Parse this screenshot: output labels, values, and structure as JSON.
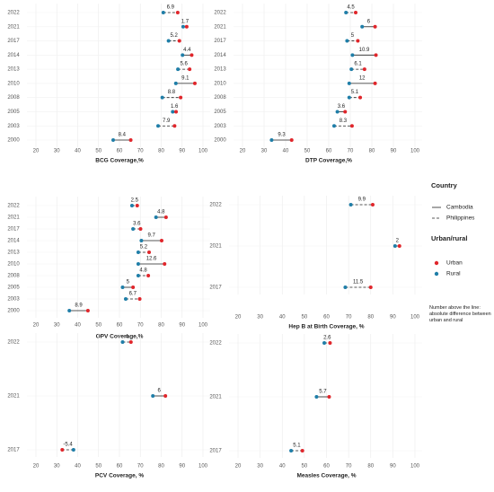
{
  "chart_data": [
    {
      "type": "dumbbell",
      "x_label": "BCG Coverage,%",
      "categories": [
        "2022",
        "2021",
        "2017",
        "2014",
        "2013",
        "2010",
        "2008",
        "2005",
        "2003",
        "2000"
      ],
      "country": [
        "Philippines",
        "Cambodia",
        "Philippines",
        "Cambodia",
        "Philippines",
        "Cambodia",
        "Philippines",
        "Cambodia",
        "Philippines",
        "Cambodia"
      ],
      "series": [
        {
          "name": "Rural",
          "color": "#1f7ea8",
          "values": [
            81,
            90.5,
            83.5,
            90.2,
            88,
            87,
            80.5,
            85.5,
            78.5,
            57
          ]
        },
        {
          "name": "Urban",
          "color": "#e0262b",
          "values": [
            87.9,
            92.2,
            88.7,
            94.6,
            93.6,
            96.1,
            89.3,
            87.1,
            86.4,
            65.4
          ]
        }
      ],
      "differences": [
        6.9,
        1.7,
        5.2,
        4.4,
        5.6,
        9.1,
        8.8,
        1.6,
        7.9,
        8.4
      ],
      "xlim": [
        20,
        100
      ],
      "xticks": [
        20,
        30,
        40,
        50,
        60,
        70,
        80,
        90,
        100
      ],
      "grid": true
    },
    {
      "type": "dumbbell",
      "x_label": "DTP Coverage,%",
      "categories": [
        "2022",
        "2021",
        "2017",
        "2014",
        "2013",
        "2010",
        "2008",
        "2005",
        "2003",
        "2000"
      ],
      "country": [
        "Philippines",
        "Cambodia",
        "Philippines",
        "Cambodia",
        "Philippines",
        "Cambodia",
        "Philippines",
        "Cambodia",
        "Philippines",
        "Cambodia"
      ],
      "series": [
        {
          "name": "Rural",
          "color": "#1f7ea8",
          "values": [
            68,
            75.5,
            68.5,
            71,
            70.5,
            69.5,
            69.5,
            64,
            62.5,
            33.5
          ]
        },
        {
          "name": "Urban",
          "color": "#e0262b",
          "values": [
            72.5,
            81.5,
            73.5,
            81.9,
            76.6,
            81.5,
            74.6,
            67.6,
            70.8,
            42.8
          ]
        }
      ],
      "differences": [
        4.5,
        6.0,
        5.0,
        10.9,
        6.1,
        12.0,
        5.1,
        3.6,
        8.3,
        9.3
      ],
      "xlim": [
        20,
        100
      ],
      "xticks": [
        20,
        30,
        40,
        50,
        60,
        70,
        80,
        90,
        100
      ],
      "grid": true
    },
    {
      "type": "dumbbell",
      "x_label": "OPV Coverage,%",
      "categories": [
        "2022",
        "2021",
        "2017",
        "2014",
        "2013",
        "2010",
        "2008",
        "2005",
        "2003",
        "2000"
      ],
      "country": [
        "Philippines",
        "Cambodia",
        "Philippines",
        "Cambodia",
        "Philippines",
        "Cambodia",
        "Philippines",
        "Cambodia",
        "Philippines",
        "Cambodia"
      ],
      "series": [
        {
          "name": "Rural",
          "color": "#1f7ea8",
          "values": [
            66,
            77.5,
            66.5,
            70.5,
            69,
            69,
            69,
            61.5,
            63,
            36
          ]
        },
        {
          "name": "Urban",
          "color": "#e0262b",
          "values": [
            68.5,
            82.3,
            70.1,
            80.2,
            74.2,
            81.6,
            73.8,
            66.5,
            69.7,
            44.9
          ]
        }
      ],
      "differences": [
        2.5,
        4.8,
        3.6,
        9.7,
        5.2,
        12.6,
        4.8,
        5.0,
        6.7,
        8.9
      ],
      "xlim": [
        20,
        100
      ],
      "xticks": [
        20,
        30,
        40,
        50,
        60,
        70,
        80,
        90,
        100
      ],
      "grid": true
    },
    {
      "type": "dumbbell",
      "x_label": "Hep B at Birth Coverage, %",
      "categories": [
        "2022",
        "2021",
        "2017"
      ],
      "country": [
        "Philippines",
        "Cambodia",
        "Philippines"
      ],
      "series": [
        {
          "name": "Rural",
          "color": "#1f7ea8",
          "values": [
            71,
            91,
            68.5
          ]
        },
        {
          "name": "Urban",
          "color": "#e0262b",
          "values": [
            80.9,
            93,
            80
          ]
        }
      ],
      "differences": [
        9.9,
        2.0,
        11.5
      ],
      "xlim": [
        20,
        100
      ],
      "xticks": [
        20,
        30,
        40,
        50,
        60,
        70,
        80,
        90,
        100
      ],
      "grid": true
    },
    {
      "type": "dumbbell",
      "x_label": "PCV Coverage, %",
      "categories": [
        "2022",
        "2021",
        "2017"
      ],
      "country": [
        "Philippines",
        "Cambodia",
        "Philippines"
      ],
      "series": [
        {
          "name": "Rural",
          "color": "#1f7ea8",
          "values": [
            61.5,
            76,
            38
          ]
        },
        {
          "name": "Urban",
          "color": "#e0262b",
          "values": [
            65.5,
            82,
            32.6
          ]
        }
      ],
      "differences": [
        4.0,
        6.0,
        -5.4
      ],
      "xlim": [
        20,
        100
      ],
      "xticks": [
        20,
        30,
        40,
        50,
        60,
        70,
        80,
        90,
        100
      ],
      "grid": true
    },
    {
      "type": "dumbbell",
      "x_label": "Measles Coverage, %",
      "categories": [
        "2022",
        "2021",
        "2017"
      ],
      "country": [
        "Philippines",
        "Cambodia",
        "Philippines"
      ],
      "series": [
        {
          "name": "Rural",
          "color": "#1f7ea8",
          "values": [
            59,
            55.5,
            44
          ]
        },
        {
          "name": "Urban",
          "color": "#e0262b",
          "values": [
            61.6,
            61.2,
            49.1
          ]
        }
      ],
      "differences": [
        2.6,
        5.7,
        5.1
      ],
      "xlim": [
        20,
        100
      ],
      "xticks": [
        20,
        30,
        40,
        50,
        60,
        70,
        80,
        90,
        100
      ],
      "grid": true
    }
  ],
  "legend": {
    "country_title": "Country",
    "countries": [
      "Cambodia",
      "Philippines"
    ],
    "group_title": "Urban/rural",
    "note": "Number above the line: absolute difference between urban and rural"
  }
}
